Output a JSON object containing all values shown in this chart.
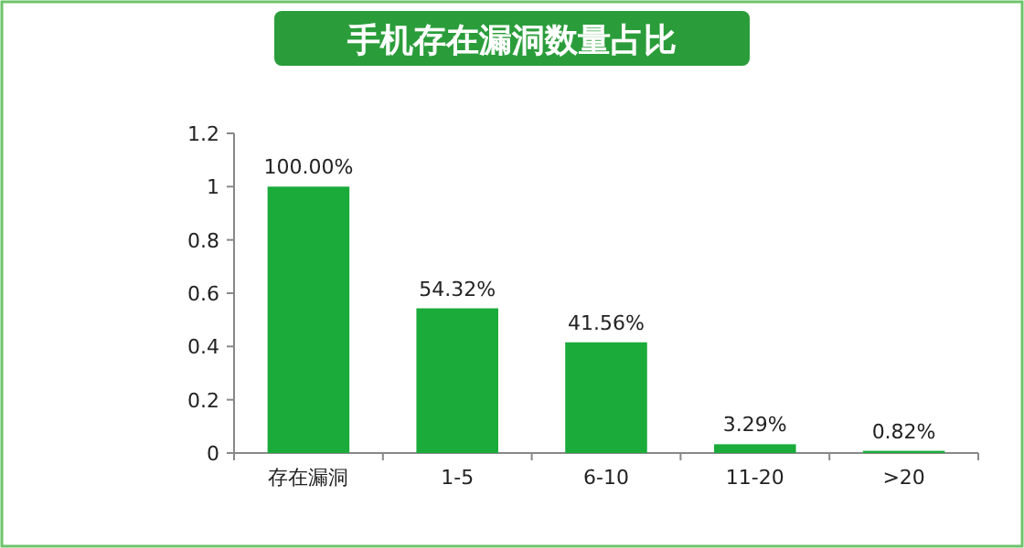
{
  "chart_data": {
    "type": "bar",
    "title": "手机存在漏洞数量占比",
    "categories": [
      "存在漏洞",
      "1-5",
      "6-10",
      "11-20",
      ">20"
    ],
    "values": [
      1,
      0.5432,
      0.4156,
      0.0329,
      0.0082
    ],
    "value_labels": [
      "100.00%",
      "54.32%",
      "41.56%",
      "3.29%",
      "0.82%"
    ],
    "color": "#1aab3a",
    "ylim": [
      0,
      1.2
    ],
    "yticks": [
      0,
      0.2,
      0.4,
      0.6,
      0.8,
      1,
      1.2
    ],
    "grid": false
  }
}
